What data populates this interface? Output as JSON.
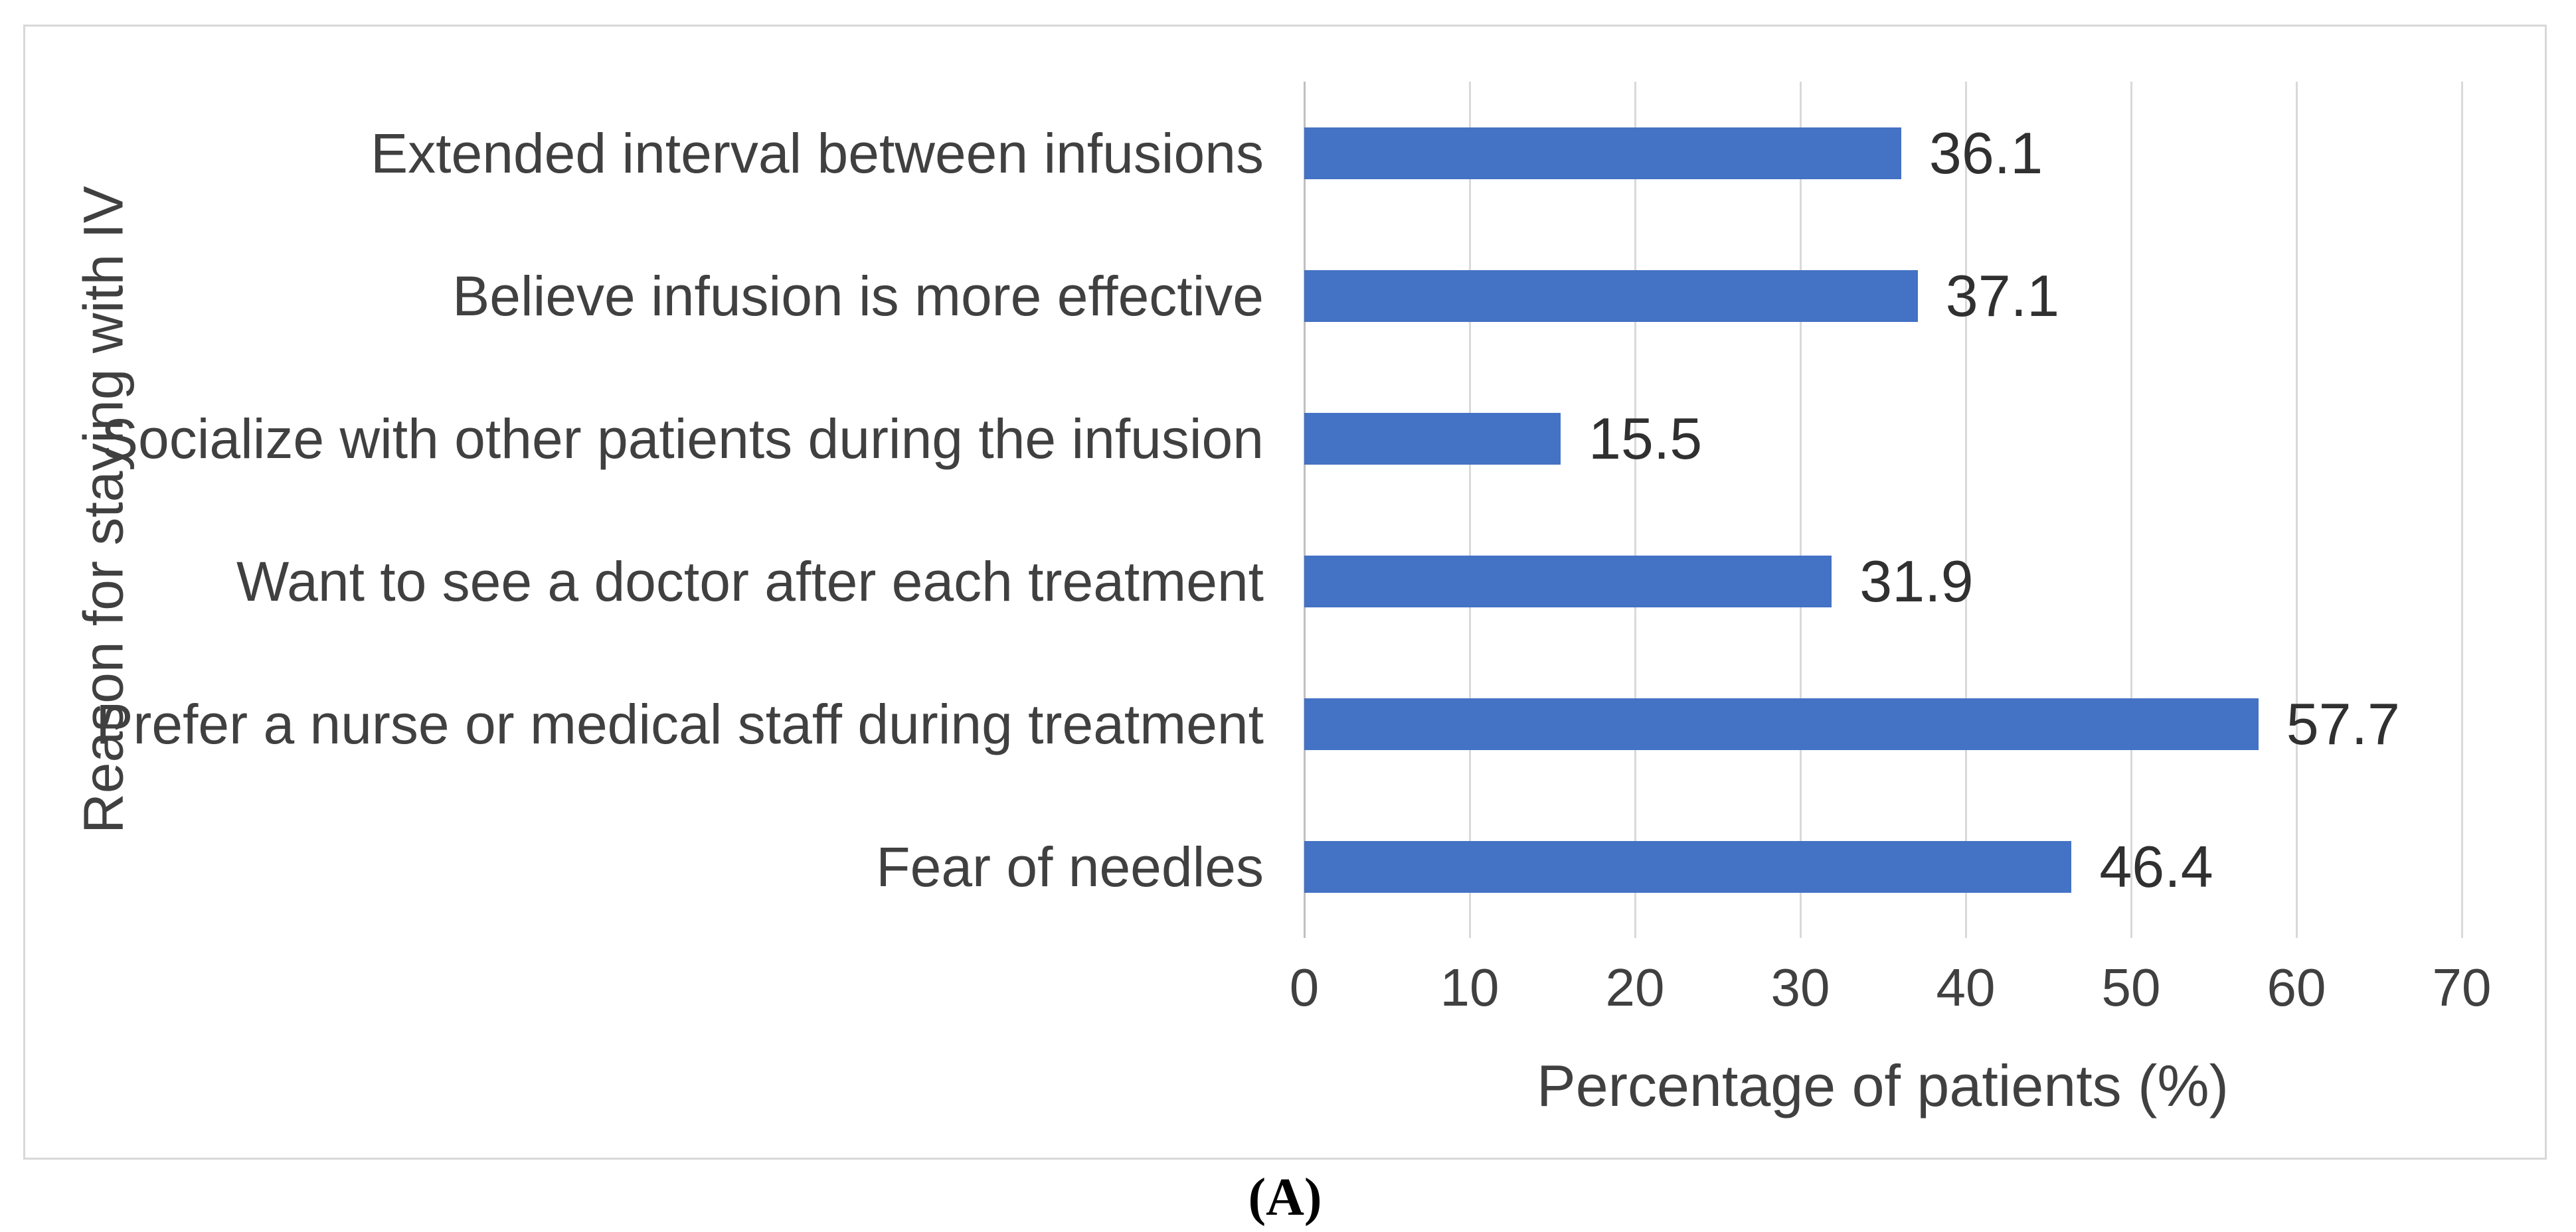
{
  "figure": {
    "caption": "(A)"
  },
  "colors": {
    "bar": "#4472C4",
    "gridline": "#D9D9D9",
    "axis_line": "#BFBFBF",
    "border": "#D8D8D8",
    "text": "#404040",
    "data_label_text": "#303030"
  },
  "chart_data": {
    "type": "bar",
    "orientation": "horizontal",
    "title": "",
    "xlabel": "Percentage of patients (%)",
    "ylabel": "Reason for staying with IV",
    "xlim": [
      0,
      70
    ],
    "xticks": [
      0,
      10,
      20,
      30,
      40,
      50,
      60,
      70
    ],
    "grid": true,
    "legend": false,
    "categories": [
      "Extended interval between infusions",
      "Believe infusion is more effective",
      "Socialize with other patients during the infusion",
      "Want to see a doctor after each treatment",
      "Prefer a nurse or medical staff during treatment",
      "Fear of needles"
    ],
    "values": [
      36.1,
      37.1,
      15.5,
      31.9,
      57.7,
      46.4
    ],
    "data_labels": [
      "36.1",
      "37.1",
      "15.5",
      "31.9",
      "57.7",
      "46.4"
    ]
  }
}
